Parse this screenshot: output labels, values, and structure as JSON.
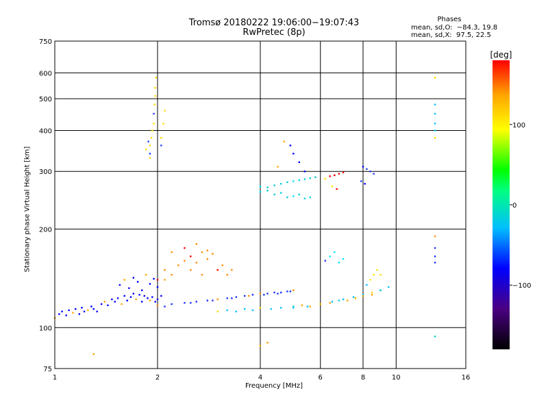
{
  "chart_data": {
    "type": "scatter",
    "title": "Tromsø 20180222 19:06:00−19:07:43",
    "subtitle": "RwPretec (8p)",
    "xlabel": "Frequency [MHz]",
    "ylabel": "Stationary phase Virtual Height [km]",
    "x_scale": "log",
    "y_scale": "log",
    "xlim": [
      1,
      16
    ],
    "ylim": [
      75,
      750
    ],
    "x_ticks": [
      1,
      2,
      4,
      6,
      8,
      10,
      16
    ],
    "y_ticks": [
      75,
      100,
      200,
      300,
      400,
      500,
      600,
      750
    ],
    "grid": true,
    "stats": {
      "heading": "Phases",
      "line_o": "mean, sd,O:  −84.3, 19.8",
      "line_x": "mean, sd,X:  97.5, 22.5"
    },
    "colorbar": {
      "label": "[deg]",
      "ticks": [
        {
          "value": 100,
          "label": "100"
        },
        {
          "value": 0,
          "label": "0"
        },
        {
          "value": -100,
          "label": "−100"
        }
      ],
      "range": [
        -180,
        180
      ],
      "colors": [
        "#000000",
        "#4b0082",
        "#0000ff",
        "#00bfff",
        "#00ff7f",
        "#00ff00",
        "#ffff00",
        "#ffa500",
        "#ff0000"
      ]
    },
    "series": [
      {
        "values": [
          [
            1.0,
            107
          ],
          [
            1.03,
            110
          ],
          [
            1.05,
            112
          ],
          [
            1.08,
            109
          ],
          [
            1.1,
            113
          ],
          [
            1.13,
            111
          ],
          [
            1.15,
            114
          ],
          [
            1.18,
            110
          ],
          [
            1.2,
            115
          ],
          [
            1.22,
            112
          ],
          [
            1.25,
            113
          ],
          [
            1.28,
            116
          ],
          [
            1.3,
            114
          ],
          [
            1.33,
            112
          ],
          [
            1.37,
            118
          ],
          [
            1.4,
            120
          ],
          [
            1.43,
            117
          ],
          [
            1.47,
            122
          ],
          [
            1.5,
            120
          ],
          [
            1.53,
            123
          ],
          [
            1.57,
            118
          ],
          [
            1.6,
            125
          ],
          [
            1.63,
            121
          ],
          [
            1.67,
            124
          ],
          [
            1.7,
            127
          ],
          [
            1.73,
            122
          ],
          [
            1.77,
            126
          ],
          [
            1.8,
            120
          ],
          [
            1.83,
            125
          ],
          [
            1.87,
            123
          ],
          [
            1.9,
            121
          ],
          [
            1.93,
            124
          ],
          [
            1.97,
            120
          ],
          [
            2.0,
            122
          ],
          [
            1.55,
            135
          ],
          [
            1.6,
            140
          ],
          [
            1.65,
            132
          ],
          [
            1.7,
            142
          ],
          [
            1.75,
            138
          ],
          [
            1.8,
            130
          ],
          [
            1.85,
            145
          ],
          [
            1.9,
            136
          ],
          [
            1.95,
            141
          ],
          [
            2.0,
            133
          ],
          [
            2.05,
            125
          ],
          [
            2.1,
            140
          ]
        ]
      },
      {
        "values": [
          [
            2.0,
            117
          ],
          [
            2.2,
            118
          ],
          [
            2.4,
            119
          ],
          [
            2.6,
            120
          ],
          [
            2.8,
            121
          ],
          [
            3.0,
            122
          ],
          [
            3.2,
            123
          ],
          [
            3.4,
            124
          ],
          [
            3.6,
            125
          ],
          [
            3.8,
            126
          ],
          [
            4.0,
            127
          ],
          [
            4.2,
            127
          ],
          [
            4.4,
            128
          ],
          [
            4.6,
            128
          ],
          [
            4.8,
            129
          ],
          [
            5.0,
            130
          ],
          [
            2.1,
            116
          ],
          [
            2.5,
            119
          ],
          [
            2.9,
            121
          ],
          [
            3.3,
            123
          ],
          [
            3.7,
            125
          ],
          [
            4.1,
            126
          ],
          [
            4.5,
            127
          ],
          [
            4.9,
            129
          ]
        ]
      },
      {
        "values": [
          [
            3.0,
            112
          ],
          [
            3.2,
            113
          ],
          [
            3.4,
            112
          ],
          [
            3.6,
            114
          ],
          [
            3.8,
            113
          ],
          [
            4.0,
            115
          ],
          [
            4.3,
            114
          ],
          [
            4.6,
            115
          ],
          [
            5.0,
            115
          ],
          [
            5.5,
            116
          ],
          [
            6.0,
            118
          ],
          [
            6.5,
            120
          ],
          [
            7.0,
            122
          ],
          [
            7.5,
            124
          ],
          [
            8.0,
            126
          ],
          [
            8.5,
            128
          ],
          [
            9.0,
            130
          ],
          [
            9.5,
            133
          ]
        ]
      },
      {
        "values": [
          [
            5.0,
            116
          ],
          [
            5.3,
            117
          ],
          [
            5.6,
            116
          ],
          [
            6.0,
            118
          ],
          [
            6.4,
            119
          ],
          [
            6.8,
            121
          ],
          [
            7.2,
            121
          ],
          [
            7.6,
            123
          ],
          [
            8.0,
            125
          ],
          [
            8.5,
            126
          ],
          [
            9.0,
            130
          ]
        ]
      },
      {
        "values": [
          [
            2.0,
            140
          ],
          [
            2.1,
            150
          ],
          [
            2.2,
            145
          ],
          [
            2.3,
            155
          ],
          [
            2.4,
            160
          ],
          [
            2.5,
            165
          ],
          [
            2.6,
            158
          ],
          [
            2.7,
            170
          ],
          [
            2.8,
            162
          ],
          [
            2.9,
            168
          ],
          [
            3.0,
            150
          ],
          [
            3.1,
            155
          ],
          [
            3.2,
            145
          ],
          [
            3.3,
            150
          ],
          [
            2.2,
            170
          ],
          [
            2.4,
            175
          ],
          [
            2.6,
            180
          ],
          [
            2.8,
            172
          ],
          [
            2.5,
            150
          ],
          [
            2.7,
            145
          ]
        ]
      },
      {
        "values": [
          [
            1.9,
            340
          ],
          [
            1.9,
            360
          ],
          [
            1.92,
            380
          ],
          [
            1.93,
            400
          ],
          [
            1.95,
            420
          ],
          [
            1.95,
            450
          ],
          [
            1.96,
            480
          ],
          [
            1.97,
            510
          ],
          [
            1.97,
            540
          ],
          [
            1.98,
            580
          ],
          [
            1.88,
            370
          ],
          [
            1.85,
            350
          ],
          [
            2.05,
            380
          ],
          [
            2.08,
            420
          ],
          [
            2.1,
            460
          ],
          [
            2.05,
            360
          ],
          [
            1.9,
            330
          ]
        ]
      },
      {
        "values": [
          [
            4.0,
            270
          ],
          [
            4.2,
            268
          ],
          [
            4.4,
            272
          ],
          [
            4.6,
            275
          ],
          [
            4.8,
            278
          ],
          [
            5.0,
            280
          ],
          [
            5.2,
            282
          ],
          [
            5.4,
            284
          ],
          [
            5.6,
            286
          ],
          [
            5.8,
            288
          ],
          [
            4.0,
            260
          ],
          [
            4.2,
            262
          ],
          [
            4.4,
            255
          ],
          [
            4.6,
            258
          ],
          [
            4.8,
            250
          ],
          [
            5.0,
            252
          ],
          [
            5.2,
            255
          ],
          [
            5.4,
            248
          ],
          [
            5.6,
            250
          ]
        ]
      },
      {
        "values": [
          [
            6.2,
            285
          ],
          [
            6.4,
            290
          ],
          [
            6.6,
            292
          ],
          [
            6.8,
            295
          ],
          [
            7.0,
            298
          ],
          [
            6.5,
            270
          ],
          [
            6.7,
            265
          ]
        ]
      },
      {
        "values": [
          [
            8.0,
            310
          ],
          [
            8.2,
            305
          ],
          [
            8.4,
            300
          ],
          [
            8.6,
            295
          ],
          [
            7.9,
            280
          ],
          [
            8.1,
            275
          ]
        ]
      },
      {
        "values": [
          [
            6.2,
            160
          ],
          [
            6.4,
            165
          ],
          [
            6.6,
            170
          ],
          [
            6.8,
            158
          ],
          [
            7.0,
            162
          ]
        ]
      },
      {
        "values": [
          [
            8.2,
            135
          ],
          [
            8.4,
            140
          ],
          [
            8.6,
            145
          ],
          [
            8.8,
            150
          ],
          [
            9.0,
            145
          ]
        ]
      },
      {
        "values": [
          [
            4.7,
            370
          ],
          [
            4.9,
            360
          ],
          [
            5.0,
            340
          ],
          [
            5.2,
            320
          ],
          [
            5.4,
            300
          ],
          [
            4.5,
            310
          ]
        ]
      },
      {
        "values": [
          [
            13.0,
            190
          ],
          [
            13.0,
            175
          ],
          [
            13.0,
            165
          ],
          [
            13.0,
            158
          ]
        ]
      },
      {
        "values": [
          [
            13.0,
            580
          ],
          [
            13.0,
            480
          ],
          [
            13.0,
            450
          ],
          [
            13.0,
            420
          ],
          [
            13.0,
            400
          ],
          [
            13.0,
            380
          ]
        ]
      },
      {
        "values": [
          [
            13.0,
            94
          ],
          [
            1.3,
            83
          ],
          [
            4.0,
            88
          ],
          [
            4.2,
            90
          ]
        ]
      }
    ]
  }
}
